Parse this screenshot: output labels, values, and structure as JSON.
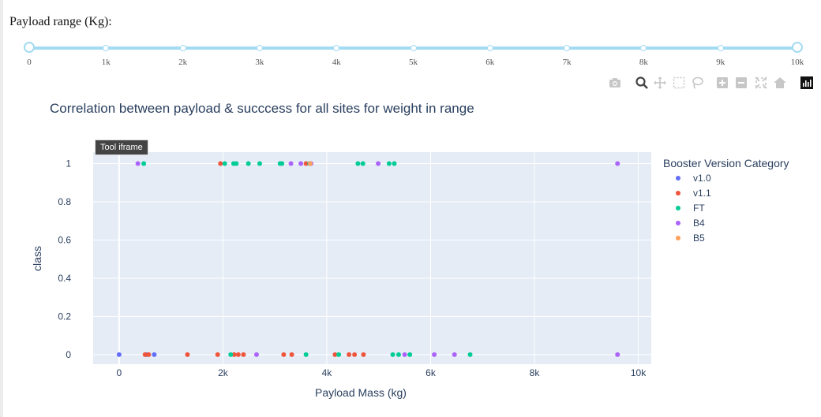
{
  "page": {
    "slider_label": "Payload range (Kg):",
    "slider_marks": [
      "0",
      "1k",
      "2k",
      "3k",
      "4k",
      "5k",
      "6k",
      "7k",
      "8k",
      "9k",
      "10k"
    ],
    "slider_value": [
      0,
      10000
    ],
    "slider_min": 0,
    "slider_max": 10000,
    "slider_color": "#a3dbf2",
    "tooltip": "Tool iframe",
    "modebar_icons": [
      "camera-icon",
      "zoom-icon",
      "pan-icon",
      "box-select-icon",
      "lasso-select-icon",
      "zoom-in-icon",
      "zoom-out-icon",
      "autoscale-icon",
      "reset-axes-icon",
      "plotly-logo-icon"
    ]
  },
  "chart_data": {
    "type": "scatter",
    "title": "Correlation between payload & succcess for all sites for weight in range",
    "xlabel": "Payload Mass (kg)",
    "ylabel": "class",
    "xlim": [
      -500,
      10250
    ],
    "ylim": [
      -0.05,
      1.06
    ],
    "x_ticks": [
      0,
      2000,
      4000,
      6000,
      8000,
      10000
    ],
    "x_tick_labels": [
      "0",
      "2k",
      "4k",
      "6k",
      "8k",
      "10k"
    ],
    "y_ticks": [
      0,
      0.2,
      0.4,
      0.6,
      0.8,
      1
    ],
    "y_tick_labels": [
      "0",
      "0.2",
      "0.4",
      "0.6",
      "0.8",
      "1"
    ],
    "grid": true,
    "plot_bg": "#e5ecf6",
    "legend_title": "Booster Version Category",
    "legend_position": "right",
    "series": [
      {
        "name": "v1.0",
        "color": "#636efa",
        "points": [
          [
            0,
            0
          ],
          [
            525,
            0
          ],
          [
            677,
            0
          ]
        ]
      },
      {
        "name": "v1.1",
        "color": "#ef553b",
        "points": [
          [
            500,
            0
          ],
          [
            570,
            0
          ],
          [
            1316,
            0
          ],
          [
            1898,
            0
          ],
          [
            2216,
            0
          ],
          [
            2295,
            0
          ],
          [
            2395,
            0
          ],
          [
            3170,
            0
          ],
          [
            3325,
            0
          ],
          [
            4159,
            0
          ],
          [
            4428,
            0
          ],
          [
            4535,
            0
          ],
          [
            4707,
            0
          ],
          [
            1952,
            1
          ],
          [
            3600,
            1
          ]
        ]
      },
      {
        "name": "FT",
        "color": "#00cc96",
        "points": [
          [
            475,
            1
          ],
          [
            2034,
            1
          ],
          [
            2205,
            1
          ],
          [
            2257,
            1
          ],
          [
            2490,
            1
          ],
          [
            2708,
            1
          ],
          [
            3100,
            1
          ],
          [
            3136,
            1
          ],
          [
            3669,
            1
          ],
          [
            4600,
            1
          ],
          [
            4696,
            1
          ],
          [
            5200,
            1
          ],
          [
            5300,
            1
          ],
          [
            2150,
            0
          ],
          [
            3600,
            0
          ],
          [
            4230,
            0
          ],
          [
            5271,
            0
          ],
          [
            5384,
            0
          ],
          [
            5600,
            0
          ],
          [
            6761,
            0
          ]
        ]
      },
      {
        "name": "B4",
        "color": "#ab63fa",
        "points": [
          [
            362,
            1
          ],
          [
            3310,
            1
          ],
          [
            3500,
            1
          ],
          [
            3681,
            1
          ],
          [
            3696,
            1
          ],
          [
            4990,
            1
          ],
          [
            9600,
            1
          ],
          [
            2647,
            0
          ],
          [
            5500,
            0
          ],
          [
            6070,
            0
          ],
          [
            6460,
            0
          ],
          [
            9600,
            0
          ]
        ]
      },
      {
        "name": "B5",
        "color": "#ffa15a",
        "points": [
          [
            3681,
            1
          ]
        ]
      }
    ]
  }
}
